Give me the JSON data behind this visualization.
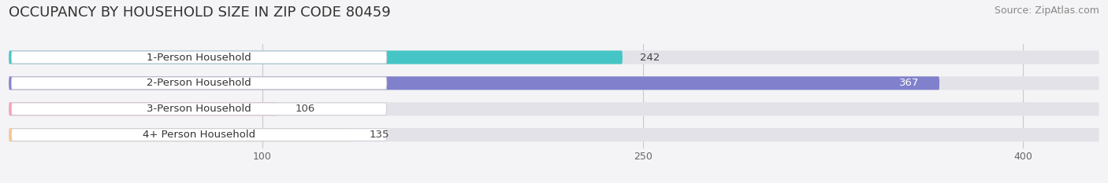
{
  "title": "OCCUPANCY BY HOUSEHOLD SIZE IN ZIP CODE 80459",
  "source": "Source: ZipAtlas.com",
  "categories": [
    "1-Person Household",
    "2-Person Household",
    "3-Person Household",
    "4+ Person Household"
  ],
  "values": [
    242,
    367,
    106,
    135
  ],
  "bar_colors": [
    "#45C5C5",
    "#8080CC",
    "#F4A0B8",
    "#F5C990"
  ],
  "background_color": "#f4f4f6",
  "bar_bg_color": "#e2e2e8",
  "label_bg_color": "#ffffff",
  "xmax": 430,
  "xticks": [
    100,
    250,
    400
  ],
  "title_fontsize": 13,
  "source_fontsize": 9,
  "label_fontsize": 9.5,
  "value_fontsize": 9.5,
  "value_colors": [
    "#444444",
    "#ffffff",
    "#444444",
    "#444444"
  ]
}
